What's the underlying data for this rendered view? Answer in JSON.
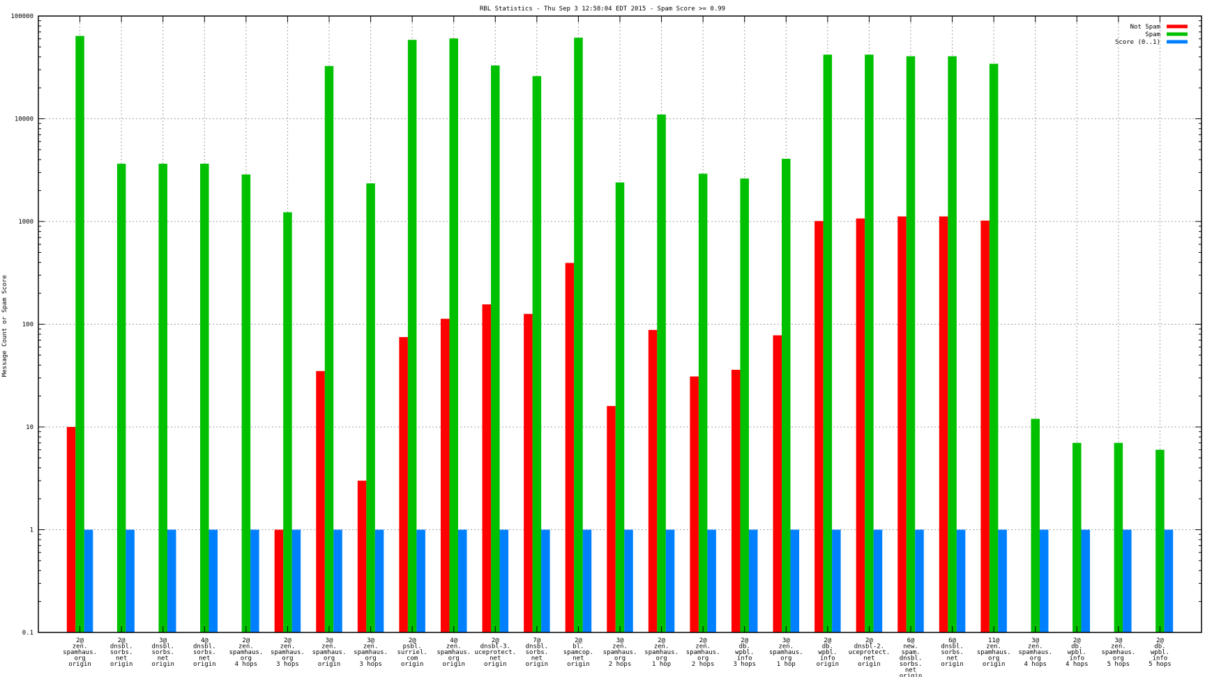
{
  "chart_data": {
    "type": "bar",
    "title": "RBL Statistics - Thu Sep  3 12:58:04 EDT 2015 - Spam Score >= 0.99",
    "xlabel": "",
    "ylabel": "Message Count or Spam Score",
    "yscale": "log",
    "ylim": [
      0.1,
      100000
    ],
    "yticks": [
      "0.1",
      "1",
      "10",
      "100",
      "1000",
      "10000",
      "100000"
    ],
    "grid": true,
    "legend_position": "top-right",
    "categories": [
      [
        "2@",
        "zen.",
        "spamhaus.",
        "org",
        "origin"
      ],
      [
        "2@",
        "dnsbl.",
        "sorbs.",
        "net",
        "origin"
      ],
      [
        "3@",
        "dnsbl.",
        "sorbs.",
        "net",
        "origin"
      ],
      [
        "4@",
        "dnsbl.",
        "sorbs.",
        "net",
        "origin"
      ],
      [
        "2@",
        "zen.",
        "spamhaus.",
        "org",
        "4 hops"
      ],
      [
        "2@",
        "zen.",
        "spamhaus.",
        "org",
        "3 hops"
      ],
      [
        "3@",
        "zen.",
        "spamhaus.",
        "org",
        "origin"
      ],
      [
        "3@",
        "zen.",
        "spamhaus.",
        "org",
        "3 hops"
      ],
      [
        "2@",
        "psbl.",
        "surriel.",
        "com",
        "origin"
      ],
      [
        "4@",
        "zen.",
        "spamhaus.",
        "org",
        "origin"
      ],
      [
        "2@",
        "dnsbl-3.",
        "uceprotect.",
        "net",
        "origin"
      ],
      [
        "7@",
        "dnsbl.",
        "sorbs.",
        "net",
        "origin"
      ],
      [
        "2@",
        "bl.",
        "spamcop.",
        "net",
        "origin"
      ],
      [
        "3@",
        "zen.",
        "spamhaus.",
        "org",
        "2 hops"
      ],
      [
        "2@",
        "zen.",
        "spamhaus.",
        "org",
        "1 hop"
      ],
      [
        "2@",
        "zen.",
        "spamhaus.",
        "org",
        "2 hops"
      ],
      [
        "2@",
        "db.",
        "wpbl.",
        "info",
        "3 hops"
      ],
      [
        "3@",
        "zen.",
        "spamhaus.",
        "org",
        "1 hop"
      ],
      [
        "2@",
        "db.",
        "wpbl.",
        "info",
        "origin"
      ],
      [
        "2@",
        "dnsbl-2.",
        "uceprotect.",
        "net",
        "origin"
      ],
      [
        "6@",
        "new.",
        "spam.",
        "dnsbl.",
        "sorbs.",
        "net",
        "origin"
      ],
      [
        "6@",
        "dnsbl.",
        "sorbs.",
        "net",
        "origin"
      ],
      [
        "11@",
        "zen.",
        "spamhaus.",
        "org",
        "origin"
      ],
      [
        "3@",
        "zen.",
        "spamhaus.",
        "org",
        "4 hops"
      ],
      [
        "2@",
        "db.",
        "wpbl.",
        "info",
        "4 hops"
      ],
      [
        "3@",
        "zen.",
        "spamhaus.",
        "org",
        "5 hops"
      ],
      [
        "2@",
        "db.",
        "wpbl.",
        "info",
        "5 hops"
      ]
    ],
    "series": [
      {
        "name": "Not Spam",
        "color": "#ff0000",
        "values": [
          10,
          null,
          null,
          null,
          null,
          1,
          35,
          3,
          75,
          113,
          156,
          126,
          395,
          16,
          88,
          31,
          36,
          78,
          1010,
          1070,
          1120,
          1120,
          1020,
          null,
          null,
          null,
          null
        ]
      },
      {
        "name": "Spam",
        "color": "#00c000",
        "values": [
          64000,
          3650,
          3650,
          3650,
          2870,
          1230,
          32600,
          2350,
          58600,
          60500,
          33000,
          26000,
          61500,
          2400,
          11000,
          2920,
          2620,
          4080,
          42100,
          42100,
          40600,
          40600,
          34300,
          12,
          7,
          7,
          6
        ]
      },
      {
        "name": "Score (0..1)",
        "color": "#0080ff",
        "values": [
          1,
          1,
          1,
          1,
          1,
          1,
          1,
          1,
          1,
          1,
          1,
          1,
          1,
          1,
          1,
          1,
          1,
          1,
          1,
          1,
          1,
          1,
          1,
          1,
          1,
          1,
          1
        ]
      }
    ]
  }
}
